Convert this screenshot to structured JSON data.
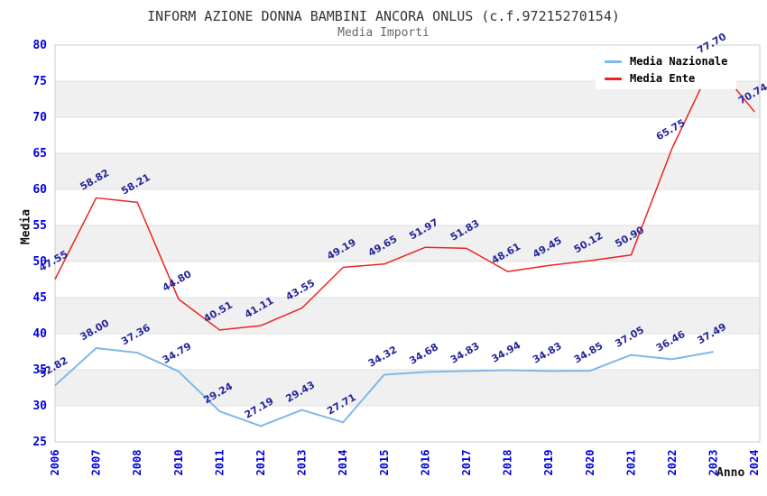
{
  "header": {
    "title": "INFORM AZIONE DONNA BAMBINI ANCORA ONLUS (c.f.97215270154)",
    "subtitle": "Media Importi"
  },
  "chart_data": {
    "type": "line",
    "title": "INFORM AZIONE DONNA BAMBINI ANCORA ONLUS (c.f.97215270154)",
    "subtitle": "Media Importi",
    "xlabel": "Anno",
    "ylabel": "Media",
    "categories": [
      "2006",
      "2007",
      "2008",
      "2010",
      "2011",
      "2012",
      "2013",
      "2014",
      "2015",
      "2016",
      "2017",
      "2018",
      "2019",
      "2020",
      "2021",
      "2022",
      "2023",
      "2024"
    ],
    "series": [
      {
        "id": "nazionale",
        "name": "Media Nazionale",
        "color": "#7EB8E8",
        "values": [
          32.82,
          38.0,
          37.36,
          34.79,
          29.24,
          27.19,
          29.43,
          27.71,
          34.32,
          34.68,
          34.83,
          34.94,
          34.83,
          34.85,
          37.05,
          36.46,
          37.49,
          null
        ]
      },
      {
        "id": "ente",
        "name": "Media Ente",
        "color": "#EE2222",
        "values": [
          47.55,
          58.82,
          58.21,
          44.8,
          40.51,
          41.11,
          43.55,
          49.19,
          49.65,
          51.97,
          51.83,
          48.61,
          49.45,
          50.12,
          50.9,
          65.75,
          77.7,
          70.74
        ]
      }
    ],
    "ylim": [
      25,
      80
    ],
    "ystep": 5,
    "grid": "horizontal-bands-alternating",
    "legend_position": "top-right",
    "colors": {
      "tick": "#0000DD",
      "label": "#26269C",
      "band": "#F0F0F0",
      "grid": "#E2E2E2",
      "border": "#CCCCCC"
    }
  }
}
